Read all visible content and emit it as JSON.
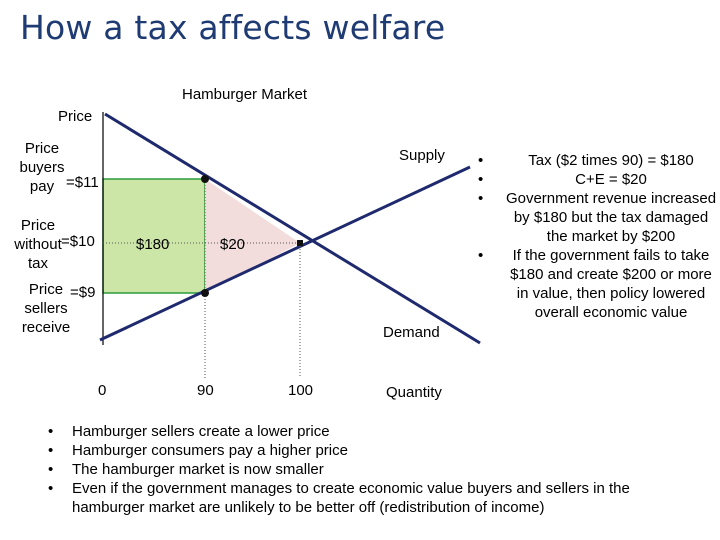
{
  "title": "How a tax affects welfare",
  "chart_title": "Hamburger Market",
  "y_axis_label": "Price",
  "x_axis_label": "Quantity",
  "labels": {
    "price_buyers_pay": "Price\nbuyers\npay",
    "buyers_value": "=$11",
    "price_without_tax": "Price\nwithout\ntax",
    "without_value": "=$10",
    "price_sellers_receive": "Price\nsellers\nreceive",
    "sellers_value": "=$9",
    "supply": "Supply",
    "demand": "Demand",
    "tax_revenue_area": "$180",
    "deadweight_area": "$20"
  },
  "x_ticks": [
    "0",
    "90",
    "100"
  ],
  "colors": {
    "title": "#1f3b73",
    "curve": "#1f2a6e",
    "revenue_fill": "#cce6a8",
    "revenue_border": "#2d9b3a",
    "deadweight_fill": "#f2dcdc"
  },
  "right_bullets": [
    "Tax ($2 times 90) = $180",
    "C+E = $20",
    "Government revenue increased by $180 but the tax damaged the market by $200",
    "If the government fails to take $180 and create $200 or more in value, then policy lowered overall economic value"
  ],
  "bottom_bullets": [
    "Hamburger sellers create a lower price",
    "Hamburger consumers pay a higher price",
    "The hamburger market is now smaller",
    "Even if the government manages to create economic value buyers and sellers in the hamburger market are unlikely to be better off (redistribution of income)"
  ],
  "bullet_glyph": "•"
}
